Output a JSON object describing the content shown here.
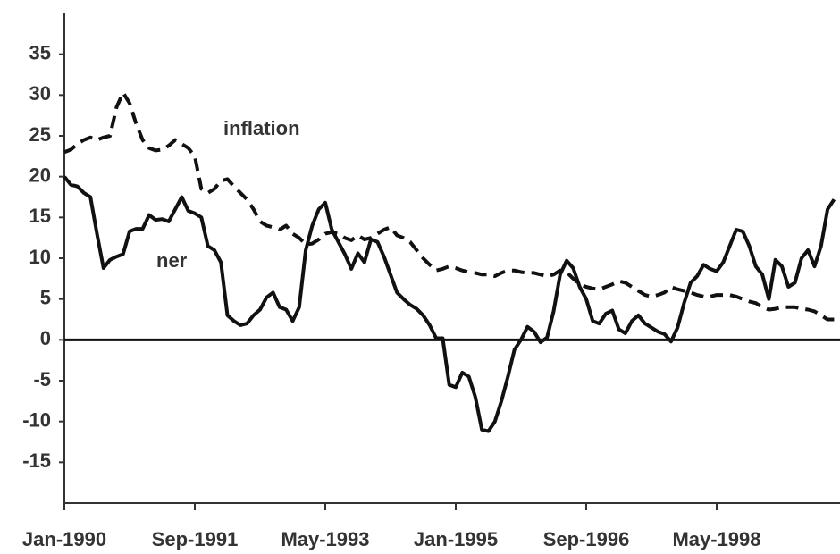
{
  "chart_data": {
    "type": "line",
    "categories": [
      "Jan-1990",
      null,
      null,
      null,
      null,
      null,
      null,
      null,
      null,
      null,
      null,
      null,
      null,
      null,
      null,
      null,
      null,
      null,
      null,
      null,
      "Sep-1991",
      null,
      null,
      null,
      null,
      null,
      null,
      null,
      null,
      null,
      null,
      null,
      null,
      null,
      null,
      null,
      null,
      null,
      null,
      null,
      "May-1993",
      null,
      null,
      null,
      null,
      null,
      null,
      null,
      null,
      null,
      null,
      null,
      null,
      null,
      null,
      null,
      null,
      null,
      null,
      null,
      "Jan-1995",
      null,
      null,
      null,
      null,
      null,
      null,
      null,
      null,
      null,
      null,
      null,
      null,
      null,
      null,
      null,
      null,
      null,
      null,
      null,
      "Sep-1996",
      null,
      null,
      null,
      null,
      null,
      null,
      null,
      null,
      null,
      null,
      null,
      null,
      null,
      null,
      null,
      null,
      null,
      null,
      null,
      "May-1998",
      null,
      null,
      null,
      null,
      null,
      null,
      null,
      null,
      null,
      null,
      null,
      null,
      null,
      null,
      null,
      null,
      null,
      null
    ],
    "series": [
      {
        "name": "ner",
        "color": "#111111",
        "linestyle": "solid",
        "values": [
          20,
          19,
          18.8,
          18,
          17.5,
          13,
          8.8,
          9.8,
          10.2,
          10.5,
          13.3,
          13.6,
          13.6,
          15.3,
          14.7,
          14.8,
          14.5,
          16,
          17.5,
          15.8,
          15.5,
          15,
          11.5,
          11,
          9.5,
          3,
          2.3,
          1.8,
          2,
          3,
          3.7,
          5.2,
          5.8,
          4,
          3.7,
          2.3,
          4,
          11,
          14,
          16,
          16.8,
          13.5,
          12,
          10.5,
          8.7,
          10.6,
          9.5,
          12.3,
          12,
          10.2,
          8,
          5.8,
          5,
          4.3,
          3.8,
          3,
          1.8,
          0.2,
          0.2,
          -5.5,
          -5.8,
          -4,
          -4.5,
          -7,
          -11,
          -11.2,
          -10,
          -7.5,
          -4.5,
          -1.2,
          0,
          1.6,
          1,
          -0.3,
          0.3,
          3.5,
          8,
          9.7,
          8.8,
          6.5,
          5,
          2.3,
          2,
          3.2,
          3.6,
          1.3,
          0.8,
          2.3,
          3,
          2,
          1.5,
          1,
          0.7,
          -0.2,
          1.5,
          4.5,
          7,
          7.8,
          9.2,
          8.7,
          8.4,
          9.5,
          11.5,
          13.5,
          13.3,
          11.5,
          9,
          8,
          5,
          9.8,
          9,
          6.5,
          7,
          10,
          11,
          9,
          11.5,
          16,
          17.2
        ]
      },
      {
        "name": "inflation",
        "color": "#111111",
        "linestyle": "dashed",
        "values": [
          23,
          23.3,
          24,
          24.5,
          24.8,
          24.5,
          24.8,
          25,
          28.5,
          30.3,
          29,
          26.5,
          24.5,
          23.5,
          23.2,
          23.3,
          23.8,
          24.5,
          24,
          23.5,
          22.5,
          18.5,
          18,
          18.5,
          19.5,
          19.7,
          18.8,
          18,
          17.2,
          16,
          14.5,
          14,
          13.8,
          13.5,
          14,
          13,
          12.5,
          11.7,
          11.8,
          12.3,
          13,
          13.2,
          13,
          12.5,
          12.2,
          12.8,
          12.3,
          12.5,
          13,
          13.5,
          13.8,
          12.8,
          12.5,
          12,
          11,
          10,
          9.2,
          8.5,
          8.7,
          9,
          8.8,
          8.5,
          8.3,
          8.2,
          8,
          8,
          7.8,
          8.2,
          8.5,
          8.5,
          8.3,
          8.2,
          8.2,
          8,
          7.8,
          8,
          8.5,
          8.3,
          7.5,
          6.8,
          6.5,
          6.3,
          6.2,
          6.5,
          6.8,
          7.2,
          7,
          6.5,
          6,
          5.5,
          5.3,
          5.5,
          5.8,
          6.5,
          6.2,
          6,
          5.8,
          5.5,
          5.3,
          5.3,
          5.5,
          5.5,
          5.5,
          5.3,
          5,
          4.7,
          4.5,
          4,
          3.7,
          3.8,
          4,
          4,
          4,
          3.8,
          3.7,
          3.5,
          3,
          2.5,
          2.5
        ]
      }
    ],
    "ylim": [
      -20,
      40
    ],
    "yticks": [
      -15,
      -10,
      -5,
      0,
      5,
      10,
      15,
      20,
      25,
      30,
      35
    ],
    "grid": false
  }
}
